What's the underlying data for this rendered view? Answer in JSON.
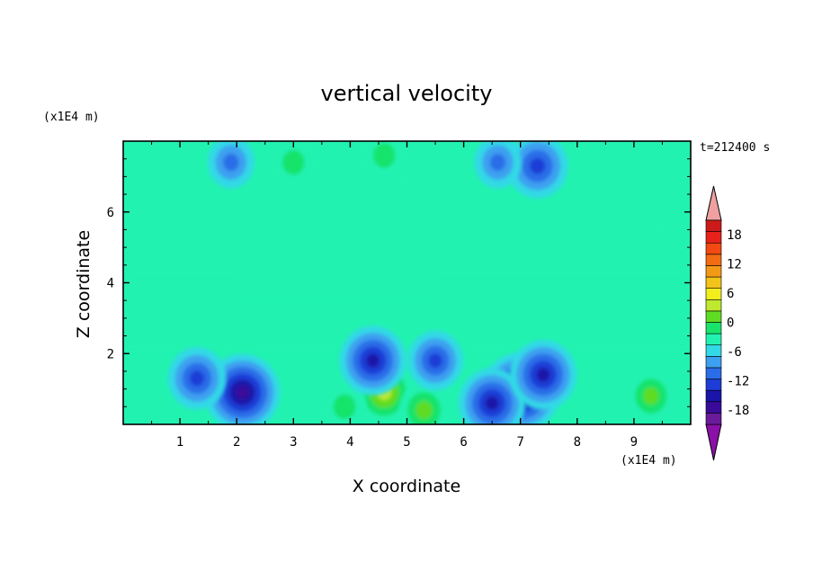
{
  "chart_data": {
    "type": "heatmap",
    "title": "vertical velocity",
    "xlabel": "X coordinate",
    "ylabel": "Z coordinate",
    "x_scale_label": "(x1E4 m)",
    "y_scale_label": "(x1E4 m)",
    "time_label": "t=212400 s",
    "xlim": [
      0,
      10
    ],
    "ylim": [
      0,
      8
    ],
    "x_ticks": [
      "1",
      "2",
      "3",
      "4",
      "5",
      "6",
      "7",
      "8",
      "9"
    ],
    "y_ticks": [
      "2",
      "4",
      "6"
    ],
    "colorbar": {
      "min": -21,
      "max": 21,
      "step": 3,
      "tick_labels": [
        "18",
        "12",
        "6",
        "0",
        "-6",
        "-12",
        "-18"
      ],
      "extend": "both",
      "colors": [
        "#6a1b9a",
        "#3a0a9a",
        "#1a14a8",
        "#1e3cd6",
        "#2b6de8",
        "#3da0f0",
        "#33d9e6",
        "#22f2b0",
        "#19e36a",
        "#5fdc24",
        "#bfe830",
        "#f2ee1e",
        "#f2c41a",
        "#f29a18",
        "#f26c14",
        "#f24a12",
        "#e8221a",
        "#cc1a1a"
      ],
      "over_color": "#f0a0a0",
      "under_color": "#8a10a8"
    },
    "features": [
      {
        "kind": "updraft",
        "x": 4.6,
        "z": 0.9,
        "value": 9
      },
      {
        "kind": "updraft",
        "x": 5.3,
        "z": 0.4,
        "value": 6
      },
      {
        "kind": "updraft",
        "x": 3.9,
        "z": 0.5,
        "value": 4
      },
      {
        "kind": "updraft",
        "x": 9.3,
        "z": 0.8,
        "value": 5
      },
      {
        "kind": "updraft",
        "x": 4.6,
        "z": 7.6,
        "value": 4
      },
      {
        "kind": "updraft",
        "x": 3.0,
        "z": 7.4,
        "value": 4
      },
      {
        "kind": "downdraft",
        "x": 2.1,
        "z": 0.9,
        "value": -15
      },
      {
        "kind": "downdraft",
        "x": 7.0,
        "z": 0.9,
        "value": -16
      },
      {
        "kind": "downdraft",
        "x": 6.5,
        "z": 0.6,
        "value": -12
      },
      {
        "kind": "downdraft",
        "x": 7.4,
        "z": 1.4,
        "value": -12
      },
      {
        "kind": "downdraft",
        "x": 1.3,
        "z": 1.3,
        "value": -9
      },
      {
        "kind": "downdraft",
        "x": 4.4,
        "z": 1.8,
        "value": -12
      },
      {
        "kind": "downdraft",
        "x": 5.5,
        "z": 1.8,
        "value": -8
      },
      {
        "kind": "downdraft",
        "x": 7.3,
        "z": 7.3,
        "value": -10
      },
      {
        "kind": "downdraft",
        "x": 1.9,
        "z": 7.4,
        "value": -5
      },
      {
        "kind": "downdraft",
        "x": 6.6,
        "z": 7.4,
        "value": -5
      }
    ]
  }
}
